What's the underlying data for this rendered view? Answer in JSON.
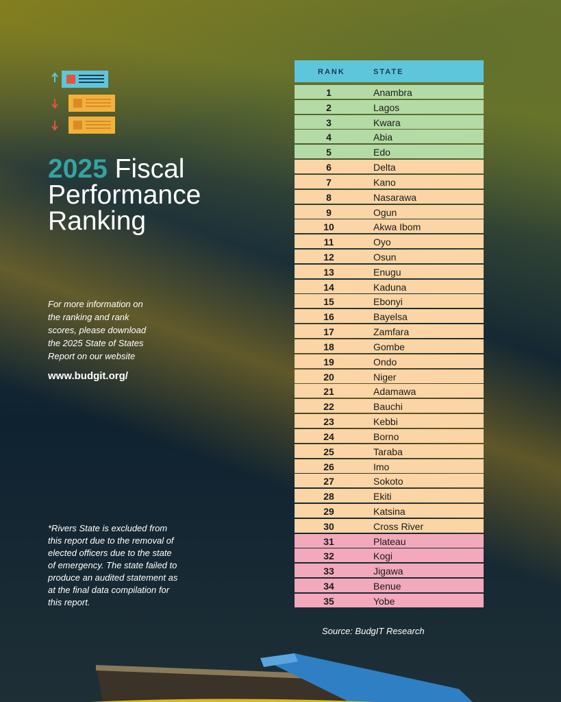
{
  "title": {
    "highlight": "2025",
    "line1": "Fiscal",
    "line2": "Performance",
    "line3": "Ranking"
  },
  "info": {
    "lines": [
      "For more information on",
      "the ranking and rank",
      "scores, please download",
      "the 2025 State of States",
      "Report on our website"
    ],
    "website": "www.budgit.org/"
  },
  "note": {
    "lines": [
      "*Rivers State is excluded from",
      "this report due to the removal of",
      "elected  officers due to the state",
      "of emergency. The state failed to",
      "produce an audited statement as",
      "at the final data compilation for",
      "this report."
    ]
  },
  "table": {
    "header": {
      "rank": "RANK",
      "state": "STATE"
    },
    "rows": [
      {
        "rank": 1,
        "state": "Anambra"
      },
      {
        "rank": 2,
        "state": "Lagos"
      },
      {
        "rank": 3,
        "state": "Kwara"
      },
      {
        "rank": 4,
        "state": "Abia"
      },
      {
        "rank": 5,
        "state": "Edo"
      },
      {
        "rank": 6,
        "state": "Delta"
      },
      {
        "rank": 7,
        "state": "Kano"
      },
      {
        "rank": 8,
        "state": "Nasarawa"
      },
      {
        "rank": 9,
        "state": "Ogun"
      },
      {
        "rank": 10,
        "state": "Akwa Ibom"
      },
      {
        "rank": 11,
        "state": "Oyo"
      },
      {
        "rank": 12,
        "state": "Osun"
      },
      {
        "rank": 13,
        "state": "Enugu"
      },
      {
        "rank": 14,
        "state": "Kaduna"
      },
      {
        "rank": 15,
        "state": "Ebonyi"
      },
      {
        "rank": 16,
        "state": "Bayelsa"
      },
      {
        "rank": 17,
        "state": "Zamfara"
      },
      {
        "rank": 18,
        "state": "Gombe"
      },
      {
        "rank": 19,
        "state": "Ondo"
      },
      {
        "rank": 20,
        "state": "Niger"
      },
      {
        "rank": 21,
        "state": "Adamawa"
      },
      {
        "rank": 22,
        "state": "Bauchi"
      },
      {
        "rank": 23,
        "state": "Kebbi"
      },
      {
        "rank": 24,
        "state": "Borno"
      },
      {
        "rank": 25,
        "state": "Taraba"
      },
      {
        "rank": 26,
        "state": "Imo"
      },
      {
        "rank": 27,
        "state": "Sokoto"
      },
      {
        "rank": 28,
        "state": "Ekiti"
      },
      {
        "rank": 29,
        "state": "Katsina"
      },
      {
        "rank": 30,
        "state": "Cross River"
      },
      {
        "rank": 31,
        "state": "Plateau"
      },
      {
        "rank": 32,
        "state": "Kogi"
      },
      {
        "rank": 33,
        "state": "Jigawa"
      },
      {
        "rank": 34,
        "state": "Benue"
      },
      {
        "rank": 35,
        "state": "Yobe"
      }
    ]
  },
  "source": "Source: BudgIT Research"
}
